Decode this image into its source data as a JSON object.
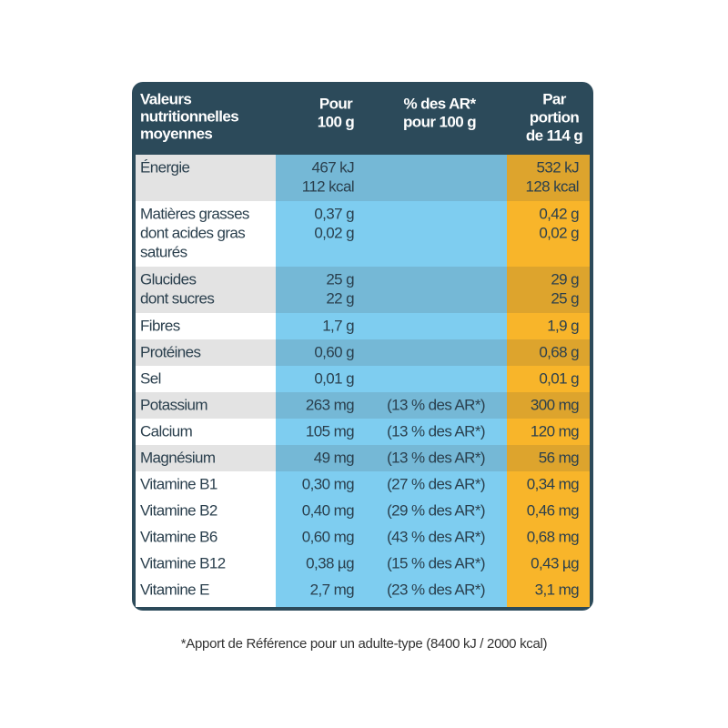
{
  "header": {
    "label": [
      "Valeurs",
      "nutritionnelles",
      "moyennes"
    ],
    "per100": [
      "Pour",
      "100 g"
    ],
    "ar": [
      "% des AR*",
      "pour 100 g"
    ],
    "portion": [
      "Par",
      "portion",
      "de 114 g"
    ]
  },
  "rows": [
    {
      "label": [
        "Énergie"
      ],
      "per100": [
        "467 kJ",
        "112 kcal"
      ],
      "portion": [
        "532 kJ",
        "128 kcal"
      ],
      "shaded": true
    },
    {
      "label": [
        "Matières grasses",
        "dont acides gras",
        "saturés"
      ],
      "per100": [
        "0,37 g",
        "0,02 g"
      ],
      "portion": [
        "0,42 g",
        "0,02 g"
      ],
      "shaded": false
    },
    {
      "label": [
        "Glucides",
        "dont sucres"
      ],
      "per100": [
        "25 g",
        "22 g"
      ],
      "portion": [
        "29 g",
        "25 g"
      ],
      "shaded": true
    },
    {
      "label": [
        "Fibres"
      ],
      "per100": [
        "1,7 g"
      ],
      "portion": [
        "1,9 g"
      ],
      "shaded": false
    },
    {
      "label": [
        "Protéines"
      ],
      "per100": [
        "0,60 g"
      ],
      "portion": [
        "0,68 g"
      ],
      "shaded": true
    },
    {
      "label": [
        "Sel"
      ],
      "per100": [
        "0,01 g"
      ],
      "portion": [
        "0,01 g"
      ],
      "shaded": false
    },
    {
      "label": [
        "Potassium"
      ],
      "per100": [
        "263 mg"
      ],
      "ar": [
        "(13 % des AR*)"
      ],
      "portion": [
        "300 mg"
      ],
      "shaded": true
    },
    {
      "label": [
        "Calcium"
      ],
      "per100": [
        "105 mg"
      ],
      "ar": [
        "(13 % des AR*)"
      ],
      "portion": [
        "120 mg"
      ],
      "shaded": false
    },
    {
      "label": [
        "Magnésium"
      ],
      "per100": [
        "49 mg"
      ],
      "ar": [
        "(13 % des AR*)"
      ],
      "portion": [
        "56 mg"
      ],
      "shaded": true
    },
    {
      "label": [
        "Vitamine B1"
      ],
      "per100": [
        "0,30 mg"
      ],
      "ar": [
        "(27 % des AR*)"
      ],
      "portion": [
        "0,34 mg"
      ],
      "shaded": false
    },
    {
      "label": [
        "Vitamine B2"
      ],
      "per100": [
        "0,40 mg"
      ],
      "ar": [
        "(29 % des AR*)"
      ],
      "portion": [
        "0,46 mg"
      ],
      "shaded": false
    },
    {
      "label": [
        "Vitamine B6"
      ],
      "per100": [
        "0,60 mg"
      ],
      "ar": [
        "(43 % des AR*)"
      ],
      "portion": [
        "0,68 mg"
      ],
      "shaded": false
    },
    {
      "label": [
        "Vitamine B12"
      ],
      "per100": [
        "0,38 µg"
      ],
      "ar": [
        "(15 % des AR*)"
      ],
      "portion": [
        "0,43 µg"
      ],
      "shaded": false
    },
    {
      "label": [
        "Vitamine E"
      ],
      "per100": [
        "2,7 mg"
      ],
      "ar": [
        "(23 % des AR*)"
      ],
      "portion": [
        "3,1 mg"
      ],
      "shaded": false
    }
  ],
  "footnote": "*Apport de Référence pour un adulte-type (8400 kJ / 2000 kcal)"
}
